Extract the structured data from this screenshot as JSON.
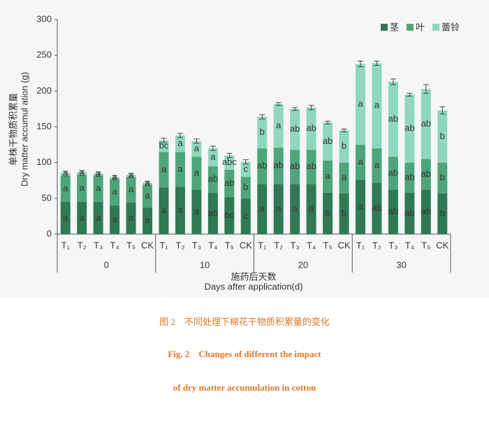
{
  "chart_data": {
    "type": "stacked_bar",
    "y_label": [
      "单株干物质积累量",
      "Dry matter accumul ation (g)"
    ],
    "x_label": [
      "施药后天数",
      "Days after application(d)"
    ],
    "categories": [
      "T₁",
      "T₂",
      "T₃",
      "T₄",
      "T₅",
      "CK",
      "T₁",
      "T₂",
      "T₃",
      "T₄",
      "T₅",
      "CK",
      "T₁",
      "T₂",
      "T₃",
      "T₄",
      "T₅",
      "CK",
      "T₁",
      "T₂",
      "T₃",
      "T₄",
      "T₅",
      "CK"
    ],
    "groups": [
      "0",
      "10",
      "20",
      "30"
    ],
    "ylim": [
      0,
      300
    ],
    "yticks": [
      0,
      50,
      100,
      150,
      200,
      250,
      300
    ],
    "series": [
      {
        "name": "茎",
        "color": "#2f7a55",
        "values": [
          45,
          45,
          45,
          40,
          44,
          37,
          65,
          66,
          62,
          58,
          52,
          50,
          70,
          70,
          70,
          70,
          58,
          57,
          76,
          72,
          62,
          58,
          62,
          57
        ],
        "letters": [
          "a",
          "a",
          "a",
          "a",
          "a",
          "a",
          "a",
          "a",
          "a",
          "ab",
          "bc",
          "c",
          "a",
          "a",
          "a",
          "a",
          "b",
          "b",
          "a",
          "ab",
          "ab",
          "ab",
          "ab",
          "b"
        ]
      },
      {
        "name": "叶",
        "color": "#4fa57a",
        "values": [
          37,
          38,
          37,
          37,
          36,
          32,
          50,
          49,
          46,
          37,
          38,
          30,
          50,
          51,
          48,
          48,
          45,
          43,
          49,
          48,
          46,
          42,
          43,
          43
        ],
        "letters": [
          "a",
          "a",
          "a",
          "a",
          "a",
          "a",
          "a",
          "a",
          "a",
          "ab",
          "ab",
          "b",
          "ab",
          "ab",
          "ab",
          "ab",
          "a",
          "a",
          "a",
          "a",
          "ab",
          "ab",
          "ab",
          "b"
        ]
      },
      {
        "name": "蕾铃",
        "color": "#8fd8bd",
        "values": [
          4,
          4,
          3,
          3,
          3,
          3,
          16,
          23,
          22,
          25,
          20,
          21,
          44,
          61,
          57,
          59,
          53,
          45,
          113,
          119,
          105,
          95,
          98,
          73
        ],
        "errors": [
          2,
          2,
          2,
          2,
          2,
          2,
          3,
          3,
          3,
          3,
          3,
          3,
          3,
          2,
          2,
          3,
          2,
          2,
          4,
          3,
          4,
          2,
          6,
          5
        ],
        "letters": [
          "a",
          "a",
          "a",
          "a",
          "a",
          "a",
          "bc",
          "a",
          "a",
          "a",
          "abc",
          "c",
          "b",
          "a",
          "ab",
          "ab",
          "ab",
          "b",
          "a",
          "a",
          "ab",
          "ab",
          "ab",
          "b"
        ]
      }
    ],
    "caption": [
      "图 2　不同处理下棉花干物质积累量的变化",
      "Fig. 2　Changes of different the impact",
      "of dry matter accumulation in cotton"
    ]
  }
}
